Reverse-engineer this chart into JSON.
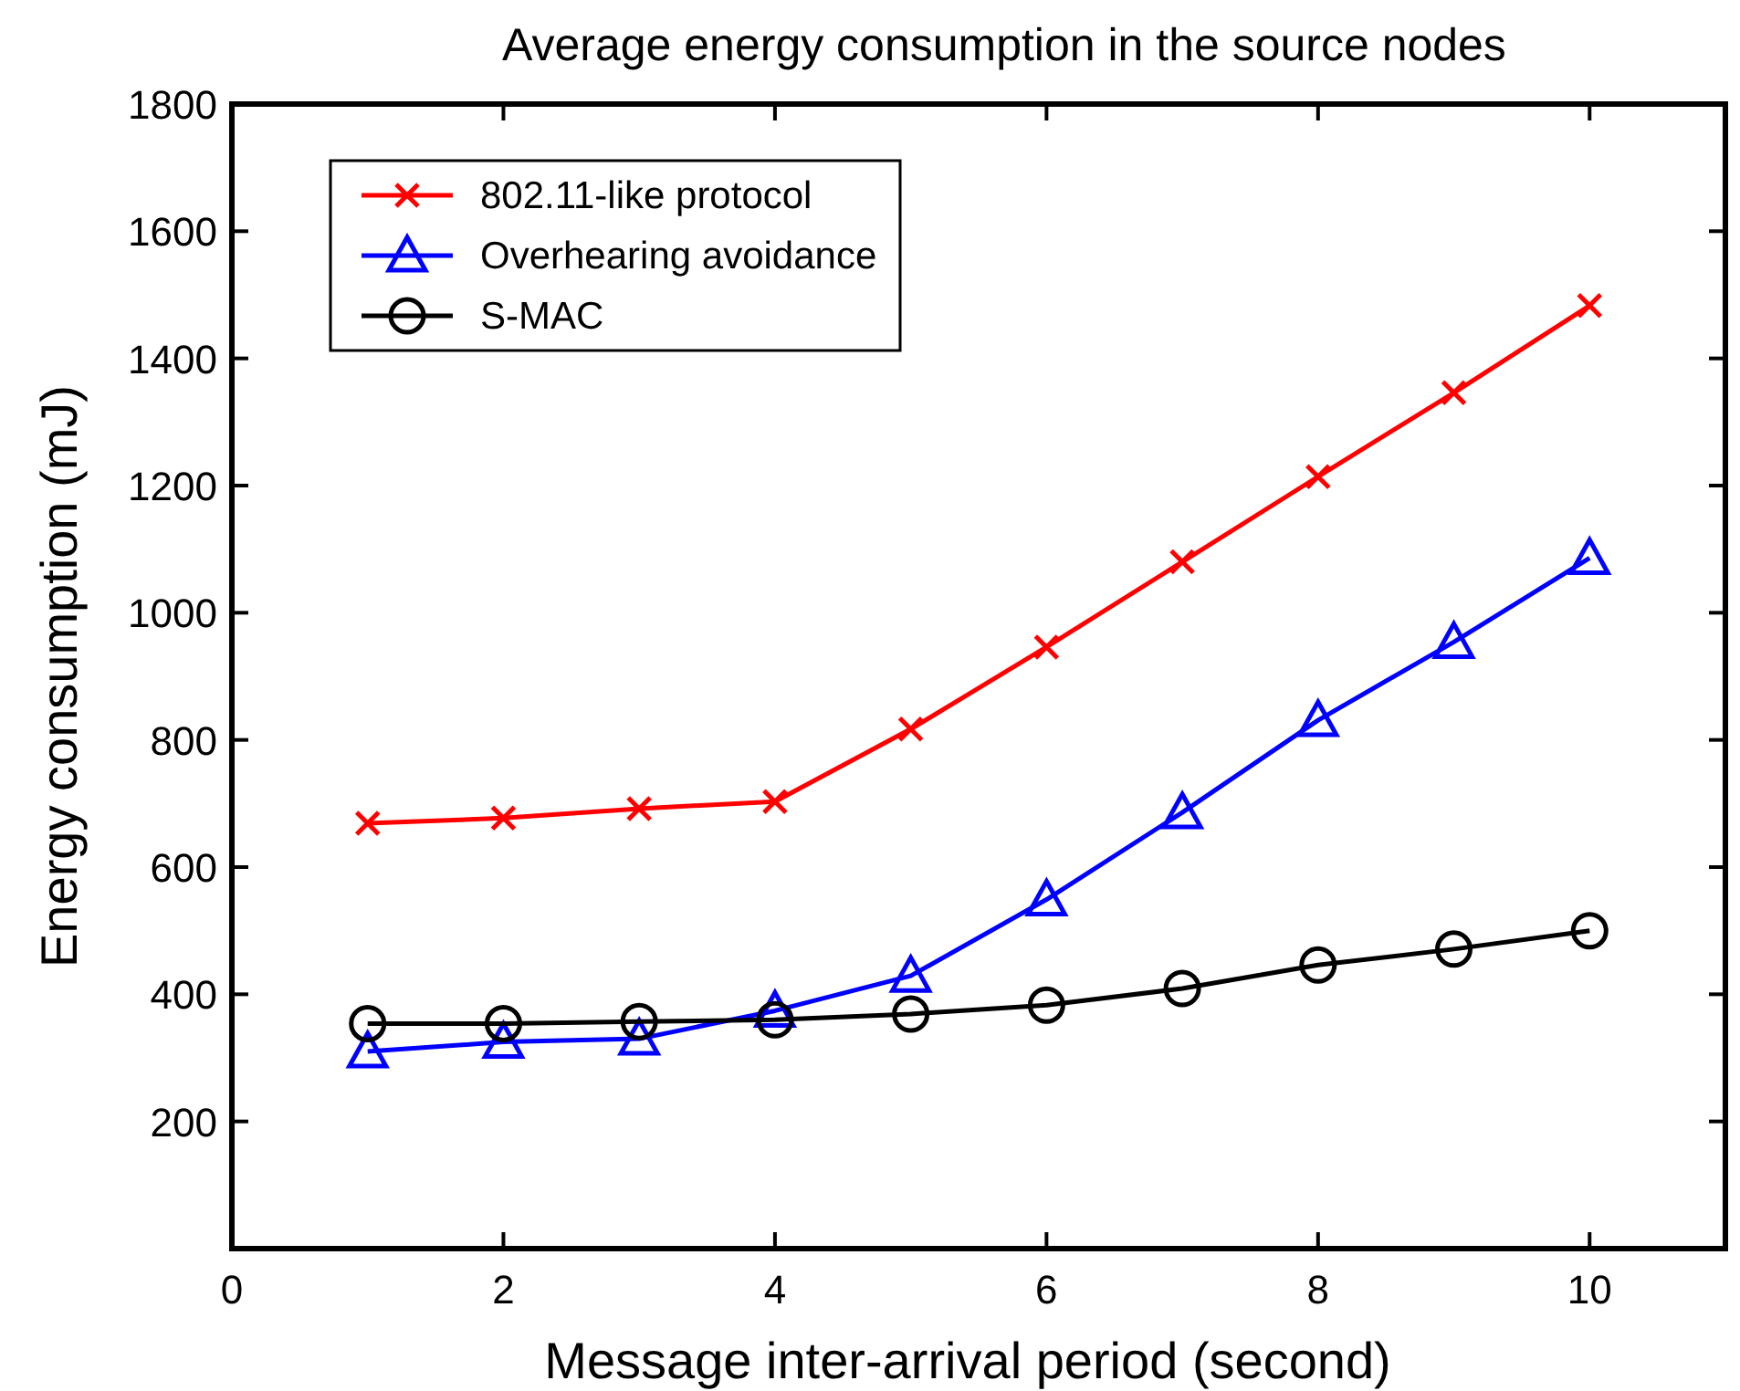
{
  "chart_data": {
    "type": "line",
    "title": "Average energy consumption in the source nodes",
    "xlabel": "Message inter-arrival period (second)",
    "ylabel": "Energy consumption (mJ)",
    "x": [
      1,
      2,
      3,
      4,
      5,
      6,
      7,
      8,
      9,
      10
    ],
    "xlim": [
      0,
      11
    ],
    "xticks": [
      0,
      2,
      4,
      6,
      8,
      10
    ],
    "ylim": [
      0,
      1800
    ],
    "yticks": [
      {
        "value": 0,
        "label": null
      },
      200,
      400,
      600,
      800,
      1000,
      1200,
      1400,
      1600,
      1800
    ],
    "grid": false,
    "legend": "top left",
    "series": [
      {
        "name": "802.11-like protocol",
        "color": "#ff0000",
        "marker": "cross",
        "values": [
          669,
          677,
          692,
          703,
          817,
          946,
          1080,
          1214,
          1346,
          1483
        ]
      },
      {
        "name": "Overhearing avoidance",
        "color": "#0000ff",
        "marker": "triangle",
        "values": [
          310,
          325,
          330,
          374,
          429,
          549,
          686,
          831,
          954,
          1086
        ]
      },
      {
        "name": "S-MAC",
        "color": "#000000",
        "marker": "circle",
        "values": [
          354,
          354,
          357,
          360,
          369,
          383,
          409,
          446,
          471,
          500
        ]
      }
    ]
  }
}
